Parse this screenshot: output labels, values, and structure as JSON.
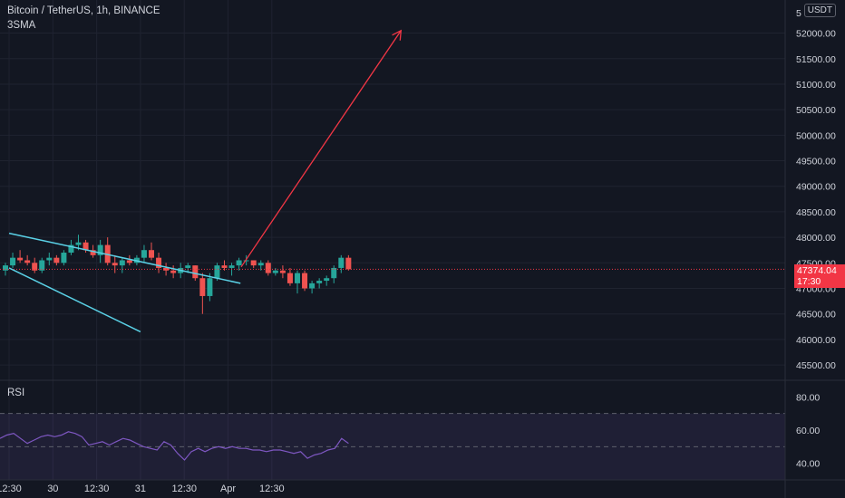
{
  "header": {
    "title": "Bitcoin / TetherUS, 1h, BINANCE",
    "indicator": "3SMA",
    "currency_badge": "USDT"
  },
  "colors": {
    "background": "#131722",
    "up": "#26a69a",
    "down": "#ef5350",
    "trendline": "#5ad1e6",
    "arrow": "#f23645",
    "rsi_line": "#7e57c2",
    "text": "#d1d4dc"
  },
  "chart_data": [
    {
      "type": "candlestick",
      "title": "Bitcoin / TetherUS, 1h, BINANCE",
      "ylim": [
        45200,
        52400
      ],
      "y_ticks": [
        "52000.00",
        "51500.00",
        "51000.00",
        "50500.00",
        "50000.00",
        "49500.00",
        "49000.00",
        "48500.00",
        "48000.00",
        "47500.00",
        "47000.00",
        "46500.00",
        "46000.00",
        "45500.00"
      ],
      "top_tick_partial": "5",
      "x_ticks": [
        {
          "label": "12:30",
          "at": 0.5
        },
        {
          "label": "30",
          "at": 6.5
        },
        {
          "label": "12:30",
          "at": 12.5
        },
        {
          "label": "31",
          "at": 18.5
        },
        {
          "label": "12:30",
          "at": 24.5
        },
        {
          "label": "Apr",
          "at": 30.5
        },
        {
          "label": "12:30",
          "at": 36.5
        }
      ],
      "last_price": "47374.04",
      "countdown": "17:30",
      "candles": [
        [
          47350,
          47500,
          47250,
          47450
        ],
        [
          47450,
          47700,
          47400,
          47600
        ],
        [
          47600,
          47750,
          47500,
          47550
        ],
        [
          47550,
          47650,
          47450,
          47500
        ],
        [
          47500,
          47600,
          47300,
          47350
        ],
        [
          47350,
          47600,
          47300,
          47550
        ],
        [
          47550,
          47700,
          47450,
          47600
        ],
        [
          47600,
          47650,
          47450,
          47500
        ],
        [
          47500,
          47750,
          47450,
          47700
        ],
        [
          47700,
          47950,
          47650,
          47850
        ],
        [
          47850,
          48050,
          47750,
          47900
        ],
        [
          47900,
          47950,
          47700,
          47750
        ],
        [
          47750,
          47850,
          47600,
          47650
        ],
        [
          47650,
          47950,
          47500,
          47850
        ],
        [
          47850,
          48000,
          47450,
          47500
        ],
        [
          47500,
          47650,
          47300,
          47450
        ],
        [
          47450,
          47600,
          47300,
          47550
        ],
        [
          47550,
          47650,
          47450,
          47500
        ],
        [
          47500,
          47650,
          47450,
          47600
        ],
        [
          47600,
          47850,
          47500,
          47750
        ],
        [
          47750,
          47900,
          47550,
          47600
        ],
        [
          47600,
          47700,
          47300,
          47400
        ],
        [
          47400,
          47500,
          47250,
          47350
        ],
        [
          47350,
          47450,
          47200,
          47300
        ],
        [
          47300,
          47500,
          47200,
          47400
        ],
        [
          47400,
          47500,
          47300,
          47450
        ],
        [
          47450,
          47450,
          47150,
          47200
        ],
        [
          47200,
          47300,
          46500,
          46850
        ],
        [
          46850,
          47300,
          46750,
          47200
        ],
        [
          47200,
          47500,
          47150,
          47450
        ],
        [
          47450,
          47550,
          47350,
          47400
        ],
        [
          47400,
          47500,
          47250,
          47450
        ],
        [
          47450,
          47600,
          47350,
          47550
        ],
        [
          47550,
          47650,
          47450,
          47550
        ],
        [
          47550,
          47550,
          47400,
          47450
        ],
        [
          47450,
          47550,
          47350,
          47500
        ],
        [
          47500,
          47550,
          47250,
          47300
        ],
        [
          47300,
          47400,
          47250,
          47350
        ],
        [
          47350,
          47450,
          47200,
          47300
        ],
        [
          47300,
          47400,
          47050,
          47100
        ],
        [
          47100,
          47350,
          46900,
          47300
        ],
        [
          47300,
          47350,
          46950,
          47000
        ],
        [
          47000,
          47150,
          46900,
          47100
        ],
        [
          47100,
          47200,
          47000,
          47150
        ],
        [
          47150,
          47250,
          47050,
          47200
        ],
        [
          47200,
          47450,
          47100,
          47400
        ],
        [
          47400,
          47650,
          47300,
          47600
        ],
        [
          47600,
          47650,
          47350,
          47374
        ]
      ]
    },
    {
      "type": "line",
      "title": "RSI",
      "ylim": [
        30,
        90
      ],
      "y_ticks": [
        "80.00",
        "60.00",
        "40.00"
      ],
      "band": [
        30,
        70
      ],
      "series": [
        {
          "values": [
            55,
            57,
            58,
            55,
            52,
            54,
            56,
            57,
            56,
            57,
            59,
            58,
            56,
            51,
            52,
            53,
            51,
            53,
            55,
            54,
            52,
            50,
            49,
            48,
            53,
            51,
            46,
            42,
            47,
            49,
            47,
            49,
            50,
            49,
            50,
            49,
            49,
            48,
            48,
            47,
            48,
            48,
            47,
            46,
            47,
            43,
            45,
            46,
            48,
            49,
            55,
            52
          ]
        }
      ]
    }
  ],
  "drawings": {
    "upper_trendline": [
      [
        0.5,
        48080
      ],
      [
        32.2,
        47100
      ]
    ],
    "lower_trendline": [
      [
        0.5,
        47400
      ],
      [
        18.5,
        46150
      ]
    ],
    "arrow": [
      [
        32.3,
        47420
      ],
      [
        54.2,
        52050
      ]
    ]
  }
}
